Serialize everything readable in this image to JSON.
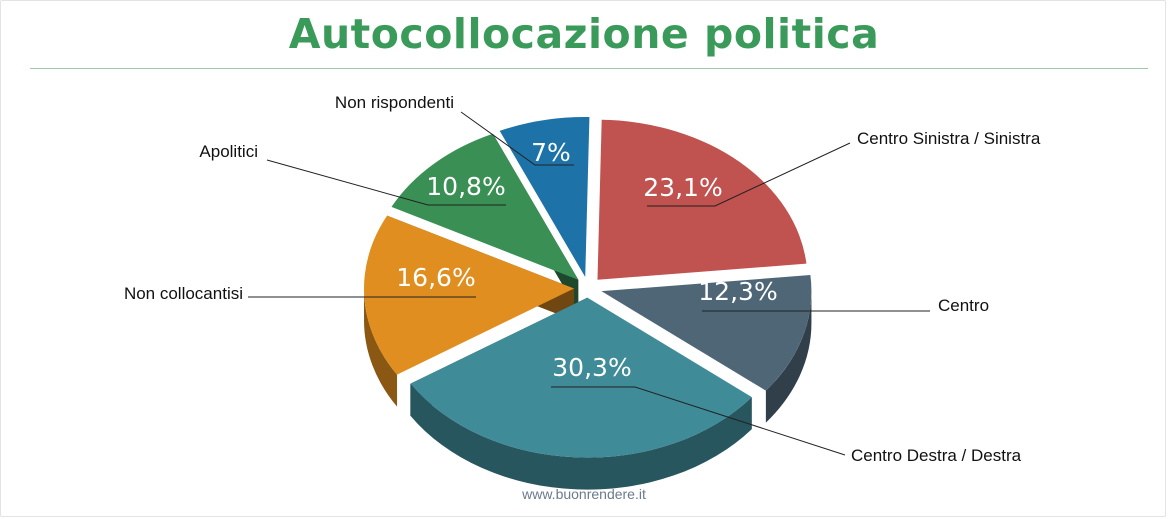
{
  "title": "Autocollocazione politica",
  "footer": "www.buonrendere.it",
  "chart_data": {
    "type": "pie",
    "title": "Autocollocazione politica",
    "slices": [
      {
        "label": "Centro Sinistra / Sinistra",
        "value": 23.1,
        "display": "23,1%",
        "color": "#c0524f"
      },
      {
        "label": "Centro",
        "value": 12.3,
        "display": "12,3%",
        "color": "#4f6677"
      },
      {
        "label": "Centro Destra / Destra",
        "value": 30.3,
        "display": "30,3%",
        "color": "#3f8b98"
      },
      {
        "label": "Non collocantisi",
        "value": 16.6,
        "display": "16,6%",
        "color": "#df8e1f"
      },
      {
        "label": "Apolitici",
        "value": 10.8,
        "display": "10,8%",
        "color": "#3a8f55"
      },
      {
        "label": "Non rispondenti",
        "value": 7,
        "display": "7%",
        "color": "#1d73a8"
      }
    ],
    "legend": "none"
  }
}
